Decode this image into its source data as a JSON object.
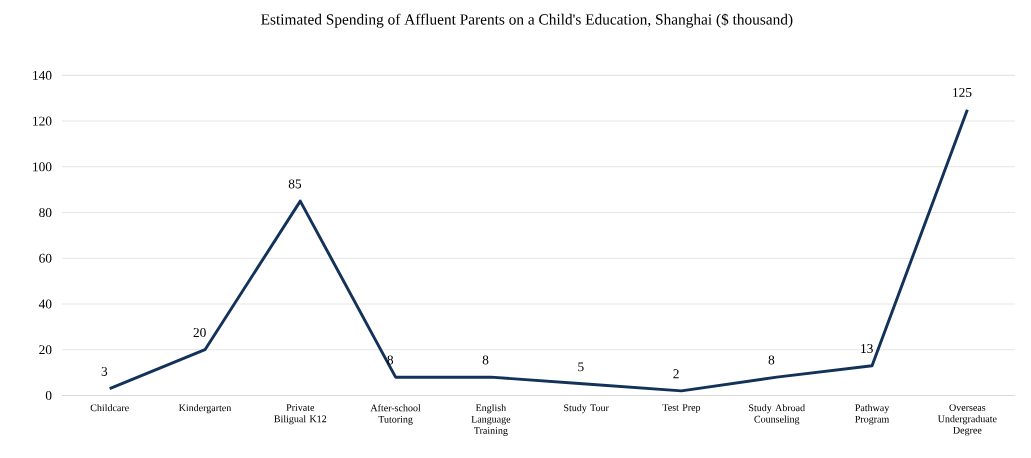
{
  "chart_data": {
    "type": "line",
    "title": "Estimated Spending of Affluent Parents on a Child's Education, Shanghai ($ thousand)",
    "categories": [
      "Childcare",
      "Kindergarten",
      "Private Biligual K12",
      "After-school Tutoring",
      "English Language Training",
      "Study Tour",
      "Test Prep",
      "Study Abroad Counseling",
      "Pathway Program",
      "Overseas Undergraduate Degree"
    ],
    "values": [
      3,
      20,
      85,
      8,
      8,
      5,
      2,
      8,
      13,
      125
    ],
    "color": "#13325a",
    "ylim": [
      0,
      140
    ],
    "yticks": [
      0,
      20,
      40,
      60,
      80,
      100,
      120,
      140
    ],
    "grid": "y",
    "data_labels": true,
    "marker": "none",
    "line_style": "solid"
  }
}
